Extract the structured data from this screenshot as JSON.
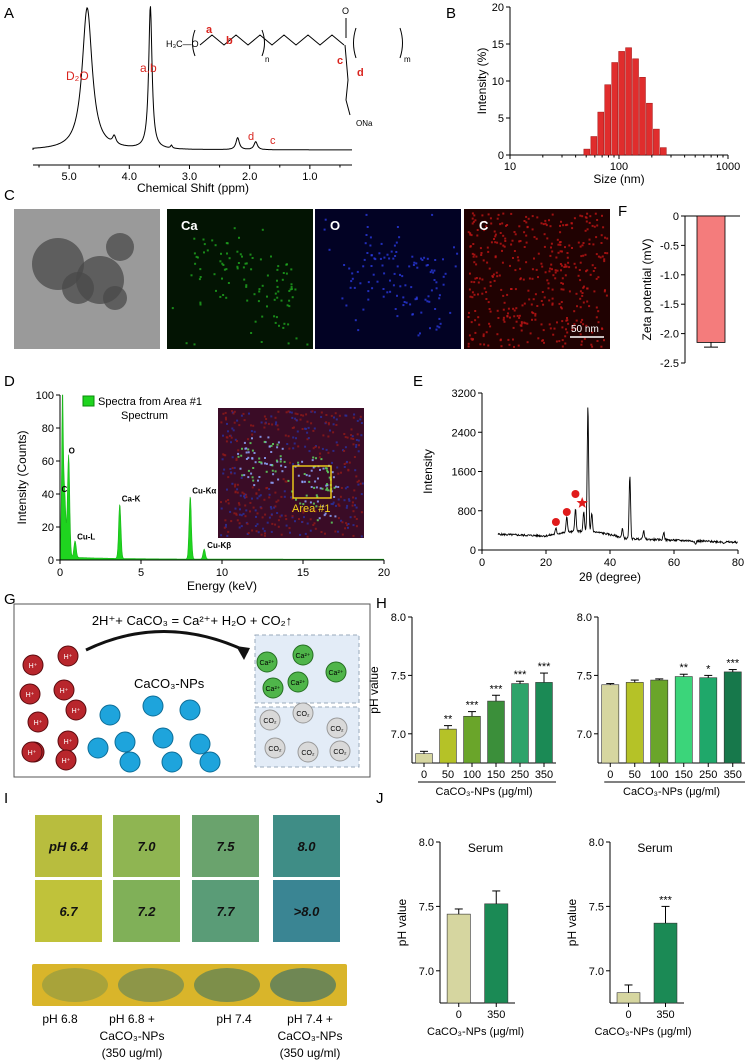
{
  "panels": {
    "A": "A",
    "B": "B",
    "C": "C",
    "D": "D",
    "E": "E",
    "F": "F",
    "G": "G",
    "H": "H",
    "I": "I",
    "J": "J"
  },
  "panelA": {
    "xlabel": "Chemical Shift (ppm)",
    "ticks": [
      "5.0",
      "4.0",
      "3.0",
      "2.0",
      "1.0"
    ],
    "peaks": [
      "D₂O",
      "a,b",
      "d",
      "c"
    ],
    "structure_labels": {
      "a": "a",
      "b": "b",
      "c": "c",
      "d": "d",
      "ch3o": "H₃C—O",
      "n": "n",
      "m": "m",
      "ona": "ONa"
    }
  },
  "chart_data": [
    {
      "panel": "B",
      "type": "bar",
      "xlabel": "Size (nm)",
      "ylabel": "Intensity (%)",
      "xscale": "log",
      "xlim": [
        10,
        1000
      ],
      "ylim": [
        0,
        20
      ],
      "xticks": [
        "10",
        "100",
        "1000"
      ],
      "yticks": [
        "0",
        "5",
        "10",
        "15",
        "20"
      ],
      "x": [
        50.7,
        58.8,
        68.1,
        78.8,
        91.3,
        105.7,
        122.4,
        141.8,
        164.2,
        190.1,
        220.2,
        255
      ],
      "values": [
        0.8,
        2.5,
        5.8,
        9.5,
        12.5,
        14.0,
        14.5,
        13.0,
        10.5,
        7.0,
        3.5,
        1.0
      ],
      "color": "#e02d2d"
    },
    {
      "panel": "F",
      "type": "bar",
      "ylabel": "Zeta potential (mV)",
      "ylim": [
        -2.5,
        0
      ],
      "yticks": [
        "0",
        "-0.5",
        "-1.0",
        "-1.5",
        "-2.0",
        "-2.5"
      ],
      "values": [
        -2.15
      ],
      "error": [
        0.08
      ],
      "color": "#f47c7c"
    },
    {
      "panel": "D",
      "type": "line",
      "xlabel": "Energy (keV)",
      "ylabel": "Intensity (Counts)",
      "xlim": [
        0,
        20
      ],
      "ylim": [
        0,
        100
      ],
      "xticks": [
        "0",
        "5",
        "10",
        "15",
        "20"
      ],
      "yticks": [
        "0",
        "20",
        "40",
        "60",
        "80",
        "100"
      ],
      "legend": [
        "Spectra from Area #1",
        "Spectrum"
      ],
      "peaks": [
        {
          "x": 0.28,
          "y": 40,
          "label": "C"
        },
        {
          "x": 0.53,
          "y": 62,
          "label": "O"
        },
        {
          "x": 0.93,
          "y": 10,
          "label": "Cu-L"
        },
        {
          "x": 3.69,
          "y": 33,
          "label": "Ca-K"
        },
        {
          "x": 8.04,
          "y": 38,
          "label": "Cu-Kα"
        },
        {
          "x": 8.9,
          "y": 6,
          "label": "Cu-Kβ"
        }
      ],
      "color": "#1fd41f"
    },
    {
      "panel": "E",
      "type": "line",
      "xlabel": "2θ (degree)",
      "ylabel": "Intensity",
      "xlim": [
        0,
        80
      ],
      "ylim": [
        0,
        3200
      ],
      "xticks": [
        "0",
        "20",
        "40",
        "60",
        "80"
      ],
      "yticks": [
        "0",
        "800",
        "1600",
        "2400",
        "3200"
      ],
      "markers_circle_x": [
        23.1,
        26.5,
        29.2
      ],
      "markers_star_x": [
        31
      ],
      "peaks": [
        {
          "x": 23.1,
          "y": 430
        },
        {
          "x": 26.5,
          "y": 650
        },
        {
          "x": 29.2,
          "y": 800
        },
        {
          "x": 31.8,
          "y": 720
        },
        {
          "x": 33.1,
          "y": 2900
        },
        {
          "x": 34.3,
          "y": 700
        },
        {
          "x": 43.9,
          "y": 500
        },
        {
          "x": 46.2,
          "y": 1600
        },
        {
          "x": 50.5,
          "y": 500
        },
        {
          "x": 56.8,
          "y": 480
        },
        {
          "x": 66.7,
          "y": 250
        },
        {
          "x": 75.6,
          "y": 300
        }
      ],
      "baseline": 320
    },
    {
      "panel": "H-left",
      "type": "bar",
      "xlabel": "CaCO₃-NPs (μg/ml)",
      "ylabel": "pH value",
      "ylim": [
        6.75,
        8.0
      ],
      "yticks": [
        "7.0",
        "7.5",
        "8.0"
      ],
      "categories": [
        "0",
        "50",
        "100",
        "150",
        "250",
        "350"
      ],
      "values": [
        6.83,
        7.04,
        7.15,
        7.28,
        7.43,
        7.44
      ],
      "error": [
        0.02,
        0.03,
        0.04,
        0.05,
        0.02,
        0.08
      ],
      "sig": [
        "",
        "**",
        "***",
        "***",
        "***",
        "***"
      ],
      "colors": [
        "#d6d6a0",
        "#b5c227",
        "#6aa52a",
        "#3b8f3a",
        "#2ea36a",
        "#1b8a55"
      ]
    },
    {
      "panel": "H-right",
      "type": "bar",
      "xlabel": "CaCO₃-NPs (μg/ml)",
      "ylabel": "",
      "ylim": [
        6.75,
        8.0
      ],
      "yticks": [
        "7.0",
        "7.5",
        "8.0"
      ],
      "categories": [
        "0",
        "50",
        "100",
        "150",
        "250",
        "350"
      ],
      "values": [
        7.42,
        7.44,
        7.46,
        7.49,
        7.48,
        7.53
      ],
      "error": [
        0.01,
        0.02,
        0.01,
        0.02,
        0.02,
        0.02
      ],
      "sig": [
        "",
        "",
        "",
        "**",
        "*",
        "***"
      ],
      "colors": [
        "#d6d6a0",
        "#b5c227",
        "#6aa52a",
        "#3bd57a",
        "#1fa86a",
        "#17784b"
      ]
    },
    {
      "panel": "J-left",
      "type": "bar",
      "title": "Serum",
      "xlabel": "CaCO₃-NPs (μg/ml)",
      "ylabel": "pH value",
      "ylim": [
        6.75,
        8.0
      ],
      "yticks": [
        "7.0",
        "7.5",
        "8.0"
      ],
      "categories": [
        "0",
        "350"
      ],
      "values": [
        7.44,
        7.52
      ],
      "error": [
        0.04,
        0.1
      ],
      "sig": [
        "",
        ""
      ],
      "colors": [
        "#d6d6a0",
        "#1b8a55"
      ]
    },
    {
      "panel": "J-right",
      "type": "bar",
      "title": "Serum",
      "xlabel": "CaCO₃-NPs (μg/ml)",
      "ylabel": "pH value",
      "ylim": [
        6.75,
        8.0
      ],
      "yticks": [
        "7.0",
        "7.5",
        "8.0"
      ],
      "categories": [
        "0",
        "350"
      ],
      "values": [
        6.83,
        7.37
      ],
      "error": [
        0.06,
        0.13
      ],
      "sig": [
        "",
        "***"
      ],
      "colors": [
        "#d6d6a0",
        "#1b8a55"
      ]
    }
  ],
  "panelC": {
    "labels": [
      "Ca",
      "O",
      "C"
    ],
    "scalebar": "50 nm"
  },
  "panelD_inset": {
    "area_label": "Area #1"
  },
  "panelG": {
    "equation": "2H⁺+ CaCO₃ = Ca²⁺+ H₂O + CO₂↑",
    "np_label": "CaCO₃-NPs",
    "h_label": "H⁺",
    "ca_label": "Ca²⁺",
    "co2_label": "CO₂"
  },
  "panelI": {
    "swatches": [
      {
        "label": "pH 6.4",
        "color": "#b8bd3e"
      },
      {
        "label": "7.0",
        "color": "#8fb552"
      },
      {
        "label": "7.5",
        "color": "#6aa36d"
      },
      {
        "label": "8.0",
        "color": "#3f8d86"
      },
      {
        "label": "6.7",
        "color": "#c0c23a"
      },
      {
        "label": "7.2",
        "color": "#80b058"
      },
      {
        "label": "7.7",
        "color": "#5a9c77"
      },
      {
        "label": ">8.0",
        "color": "#3a8593"
      }
    ],
    "strip_color": "#d9b52a",
    "captions": [
      [
        "pH 6.8"
      ],
      [
        "pH 6.8 +",
        "CaCO₃-NPs",
        "(350 ug/ml)"
      ],
      [
        "pH 7.4"
      ],
      [
        "pH 7.4 +",
        "CaCO₃-NPs",
        "(350 ug/ml)"
      ]
    ]
  }
}
